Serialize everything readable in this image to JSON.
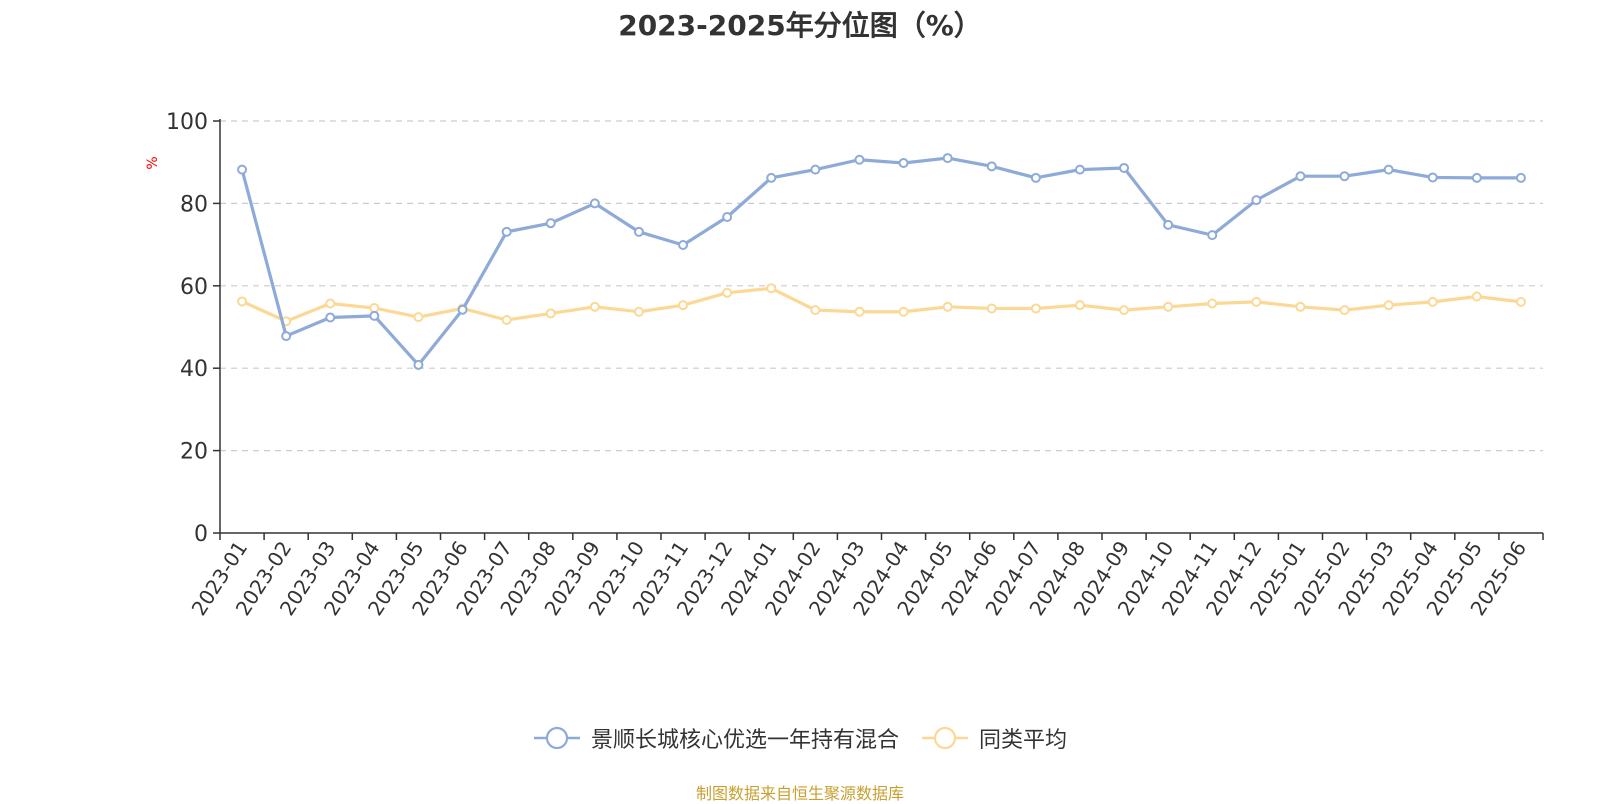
{
  "chart_data": {
    "type": "line",
    "title": "2023-2025年分位图（%）",
    "ylabel": "%",
    "ylim": [
      0,
      100
    ],
    "yticks": [
      "0",
      "20",
      "40",
      "60",
      "80",
      "100"
    ],
    "grid": true,
    "legend_position": "bottom-center",
    "categories": [
      "2023-01",
      "2023-02",
      "2023-03",
      "2023-04",
      "2023-05",
      "2023-06",
      "2023-07",
      "2023-08",
      "2023-09",
      "2023-10",
      "2023-11",
      "2023-12",
      "2024-01",
      "2024-02",
      "2024-03",
      "2024-04",
      "2024-05",
      "2024-06",
      "2024-07",
      "2024-08",
      "2024-09",
      "2024-10",
      "2024-11",
      "2024-12",
      "2025-01",
      "2025-02",
      "2025-03",
      "2025-04",
      "2025-05",
      "2025-06"
    ],
    "series": [
      {
        "name": "景顺长城核心优选一年持有混合",
        "color": "#8eaad8",
        "values": [
          88.2,
          47.8,
          52.3,
          52.7,
          40.8,
          54.2,
          73.1,
          75.2,
          80.0,
          73.1,
          69.9,
          76.7,
          86.2,
          88.2,
          90.6,
          89.8,
          91.0,
          89.0,
          86.2,
          88.2,
          88.6,
          74.8,
          72.3,
          80.8,
          86.6,
          86.6,
          88.2,
          86.3,
          86.2,
          86.2
        ]
      },
      {
        "name": "同类平均",
        "color": "#fbd896",
        "values": [
          56.2,
          51.4,
          55.7,
          54.6,
          52.4,
          54.5,
          51.7,
          53.3,
          54.9,
          53.7,
          55.3,
          58.3,
          59.4,
          54.1,
          53.7,
          53.7,
          54.9,
          54.5,
          54.5,
          55.3,
          54.1,
          54.9,
          55.7,
          56.1,
          54.9,
          54.1,
          55.3,
          56.1,
          57.4,
          56.1
        ]
      }
    ]
  },
  "source_note": "制图数据来自恒生聚源数据库"
}
